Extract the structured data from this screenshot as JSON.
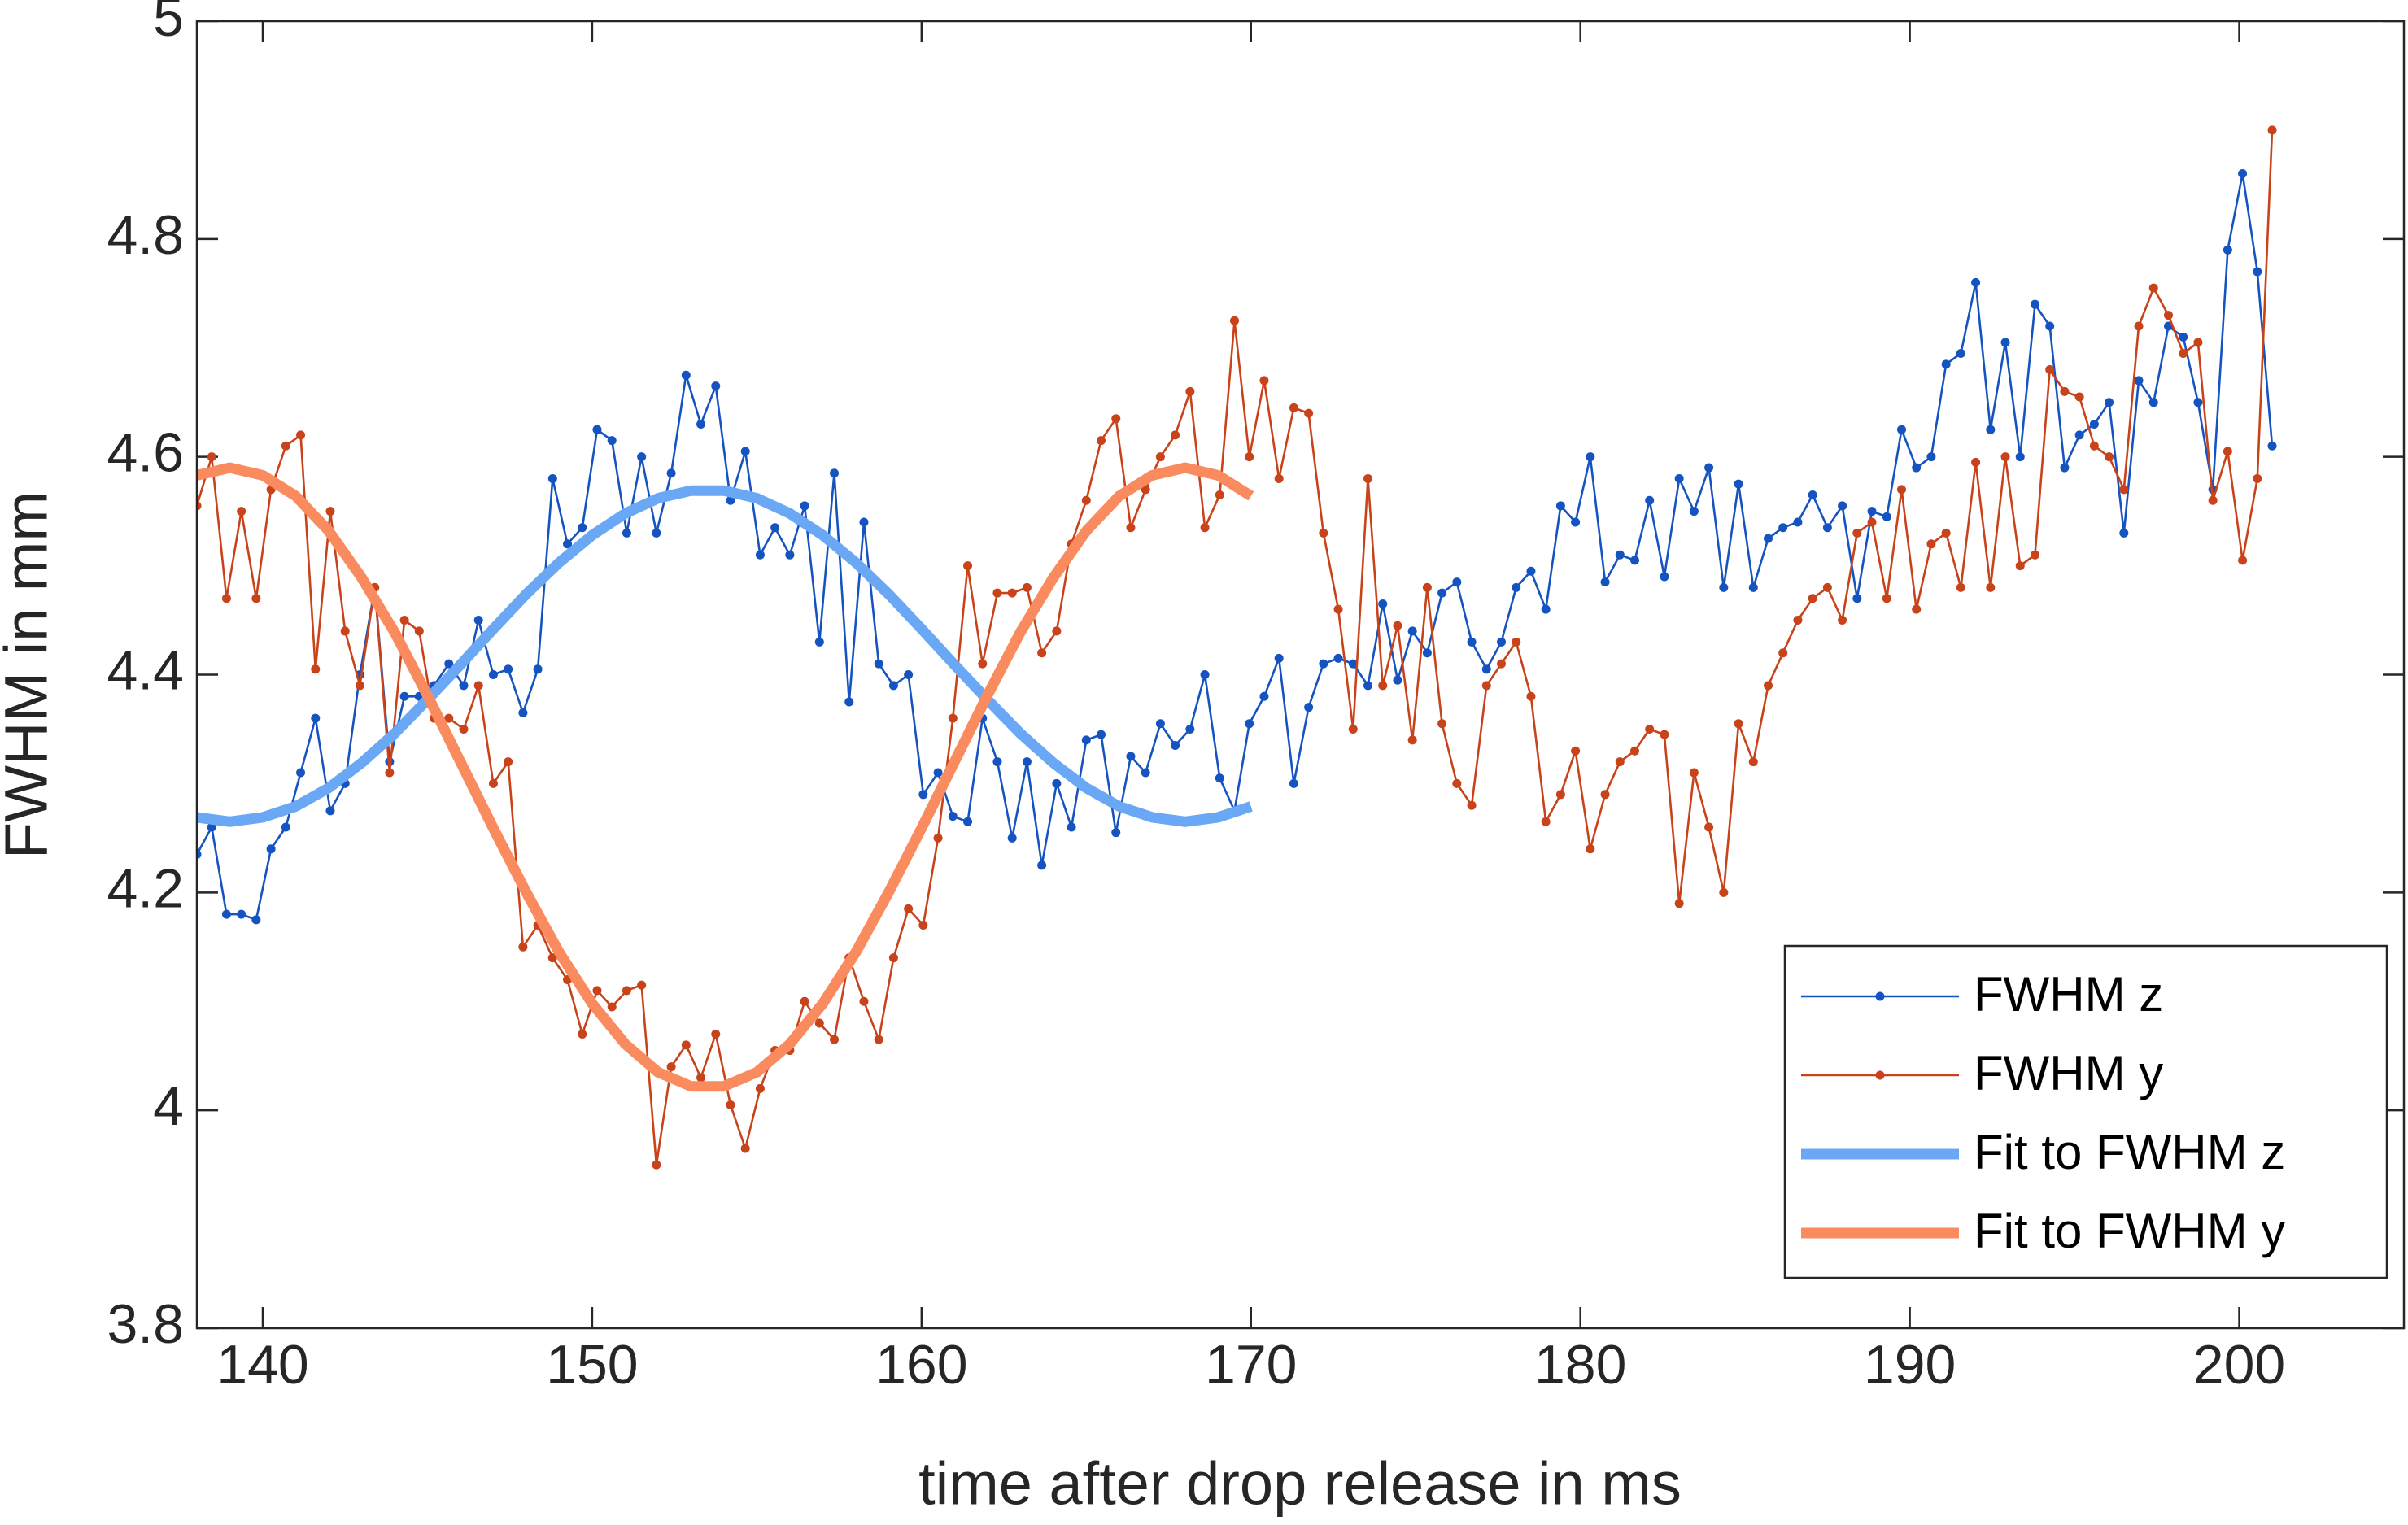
{
  "chart_data": {
    "type": "line",
    "xlabel": "time after drop release in ms",
    "ylabel": "FWHM in mm",
    "xlim": [
      138,
      205
    ],
    "ylim": [
      3.8,
      5
    ],
    "xticks": [
      140,
      150,
      160,
      170,
      180,
      190,
      200
    ],
    "yticks": [
      3.8,
      4,
      4.2,
      4.4,
      4.6,
      4.8,
      5
    ],
    "grid": false,
    "legend": "lower right",
    "series": [
      {
        "name": "FWHM z",
        "color": "#1554c0",
        "style": "marker-line",
        "x": [
          138,
          138.45,
          138.9,
          139.35,
          139.8,
          140.25,
          140.7,
          141.15,
          141.6,
          142.05,
          142.5,
          142.95,
          143.4,
          143.85,
          144.3,
          144.75,
          145.2,
          145.65,
          146.1,
          146.55,
          147,
          147.45,
          147.9,
          148.35,
          148.8,
          149.25,
          149.7,
          150.15,
          150.6,
          151.05,
          151.5,
          151.95,
          152.4,
          152.85,
          153.3,
          153.75,
          154.2,
          154.65,
          155.1,
          155.55,
          156,
          156.45,
          156.9,
          157.35,
          157.8,
          158.25,
          158.7,
          159.15,
          159.6,
          160.05,
          160.5,
          160.95,
          161.4,
          161.85,
          162.3,
          162.75,
          163.2,
          163.65,
          164.1,
          164.55,
          165,
          165.45,
          165.9,
          166.35,
          166.8,
          167.25,
          167.7,
          168.15,
          168.6,
          169.05,
          169.5,
          169.95,
          170.4,
          170.85,
          171.3,
          171.75,
          172.2,
          172.65,
          173.1,
          173.55,
          174,
          174.45,
          174.9,
          175.35,
          175.8,
          176.25,
          176.7,
          177.15,
          177.6,
          178.05,
          178.5,
          178.95,
          179.4,
          179.85,
          180.3,
          180.75,
          181.2,
          181.65,
          182.1,
          182.55,
          183,
          183.45,
          183.9,
          184.35,
          184.8,
          185.25,
          185.7,
          186.15,
          186.6,
          187.05,
          187.5,
          187.95,
          188.4,
          188.85,
          189.3,
          189.75,
          190.2,
          190.65,
          191.1,
          191.55,
          192,
          192.45,
          192.9,
          193.35,
          193.8,
          194.25,
          194.7,
          195.15,
          195.6,
          196.05,
          196.5,
          196.95,
          197.4,
          197.85,
          198.3,
          198.75,
          199.2,
          199.65,
          200.1,
          200.55,
          201
        ],
        "values": [
          4.235,
          4.26,
          4.18,
          4.18,
          4.175,
          4.24,
          4.26,
          4.31,
          4.36,
          4.275,
          4.3,
          4.4,
          4.48,
          4.32,
          4.38,
          4.38,
          4.39,
          4.41,
          4.39,
          4.45,
          4.4,
          4.405,
          4.365,
          4.405,
          4.58,
          4.52,
          4.535,
          4.625,
          4.615,
          4.53,
          4.6,
          4.53,
          4.585,
          4.675,
          4.63,
          4.665,
          4.56,
          4.605,
          4.51,
          4.535,
          4.51,
          4.555,
          4.43,
          4.585,
          4.375,
          4.54,
          4.41,
          4.39,
          4.4,
          4.29,
          4.31,
          4.27,
          4.265,
          4.36,
          4.32,
          4.25,
          4.32,
          4.225,
          4.3,
          4.26,
          4.34,
          4.345,
          4.255,
          4.325,
          4.31,
          4.355,
          4.335,
          4.35,
          4.4,
          4.305,
          4.275,
          4.355,
          4.38,
          4.415,
          4.3,
          4.37,
          4.41,
          4.415,
          4.41,
          4.39,
          4.465,
          4.395,
          4.44,
          4.42,
          4.475,
          4.485,
          4.43,
          4.405,
          4.43,
          4.48,
          4.495,
          4.46,
          4.555,
          4.54,
          4.6,
          4.485,
          4.51,
          4.505,
          4.56,
          4.49,
          4.58,
          4.55,
          4.59,
          4.48,
          4.575,
          4.48,
          4.525,
          4.535,
          4.54,
          4.565,
          4.535,
          4.555,
          4.47,
          4.55,
          4.545,
          4.625,
          4.59,
          4.6,
          4.685,
          4.695,
          4.76,
          4.625,
          4.705,
          4.6,
          4.74,
          4.72,
          4.59,
          4.62,
          4.63,
          4.65,
          4.53,
          4.67,
          4.65,
          4.72,
          4.71,
          4.65,
          4.57,
          4.79,
          4.86,
          4.77,
          4.61
        ]
      },
      {
        "name": "FWHM y",
        "color": "#c8421a",
        "style": "marker-line",
        "x": [
          138,
          138.45,
          138.9,
          139.35,
          139.8,
          140.25,
          140.7,
          141.15,
          141.6,
          142.05,
          142.5,
          142.95,
          143.4,
          143.85,
          144.3,
          144.75,
          145.2,
          145.65,
          146.1,
          146.55,
          147,
          147.45,
          147.9,
          148.35,
          148.8,
          149.25,
          149.7,
          150.15,
          150.6,
          151.05,
          151.5,
          151.95,
          152.4,
          152.85,
          153.3,
          153.75,
          154.2,
          154.65,
          155.1,
          155.55,
          156,
          156.45,
          156.9,
          157.35,
          157.8,
          158.25,
          158.7,
          159.15,
          159.6,
          160.05,
          160.5,
          160.95,
          161.4,
          161.85,
          162.3,
          162.75,
          163.2,
          163.65,
          164.1,
          164.55,
          165,
          165.45,
          165.9,
          166.35,
          166.8,
          167.25,
          167.7,
          168.15,
          168.6,
          169.05,
          169.5,
          169.95,
          170.4,
          170.85,
          171.3,
          171.75,
          172.2,
          172.65,
          173.1,
          173.55,
          174,
          174.45,
          174.9,
          175.35,
          175.8,
          176.25,
          176.7,
          177.15,
          177.6,
          178.05,
          178.5,
          178.95,
          179.4,
          179.85,
          180.3,
          180.75,
          181.2,
          181.65,
          182.1,
          182.55,
          183,
          183.45,
          183.9,
          184.35,
          184.8,
          185.25,
          185.7,
          186.15,
          186.6,
          187.05,
          187.5,
          187.95,
          188.4,
          188.85,
          189.3,
          189.75,
          190.2,
          190.65,
          191.1,
          191.55,
          192,
          192.45,
          192.9,
          193.35,
          193.8,
          194.25,
          194.7,
          195.15,
          195.6,
          196.05,
          196.5,
          196.95,
          197.4,
          197.85,
          198.3,
          198.75,
          199.2,
          199.65,
          200.1,
          200.55,
          201
        ],
        "values": [
          4.555,
          4.6,
          4.47,
          4.55,
          4.47,
          4.57,
          4.61,
          4.62,
          4.405,
          4.55,
          4.44,
          4.39,
          4.48,
          4.31,
          4.45,
          4.44,
          4.36,
          4.36,
          4.35,
          4.39,
          4.3,
          4.32,
          4.15,
          4.17,
          4.14,
          4.12,
          4.07,
          4.11,
          4.095,
          4.11,
          4.115,
          3.95,
          4.04,
          4.06,
          4.03,
          4.07,
          4.005,
          3.965,
          4.02,
          4.055,
          4.055,
          4.1,
          4.08,
          4.065,
          4.14,
          4.1,
          4.065,
          4.14,
          4.185,
          4.17,
          4.25,
          4.36,
          4.5,
          4.41,
          4.475,
          4.475,
          4.48,
          4.42,
          4.44,
          4.52,
          4.56,
          4.615,
          4.635,
          4.535,
          4.57,
          4.6,
          4.62,
          4.66,
          4.535,
          4.565,
          4.725,
          4.6,
          4.67,
          4.58,
          4.645,
          4.64,
          4.53,
          4.46,
          4.35,
          4.58,
          4.39,
          4.445,
          4.34,
          4.48,
          4.355,
          4.3,
          4.28,
          4.39,
          4.41,
          4.43,
          4.38,
          4.265,
          4.29,
          4.33,
          4.24,
          4.29,
          4.32,
          4.33,
          4.35,
          4.345,
          4.19,
          4.31,
          4.26,
          4.2,
          4.355,
          4.32,
          4.39,
          4.42,
          4.45,
          4.47,
          4.48,
          4.45,
          4.53,
          4.54,
          4.47,
          4.57,
          4.46,
          4.52,
          4.53,
          4.48,
          4.595,
          4.48,
          4.6,
          4.5,
          4.51,
          4.68,
          4.66,
          4.655,
          4.61,
          4.6,
          4.57,
          4.72,
          4.755,
          4.73,
          4.695,
          4.705,
          4.56,
          4.605,
          4.505,
          4.58,
          4.9
        ]
      },
      {
        "name": "Fit to FWHM z",
        "color": "#6aa8f5",
        "style": "thick-line",
        "x": [
          138,
          139,
          140,
          141,
          142,
          143,
          144,
          145,
          146,
          147,
          148,
          149,
          150,
          151,
          152,
          153,
          154,
          155,
          156,
          157,
          158,
          159,
          160,
          161,
          162,
          163,
          164,
          165,
          166,
          167,
          168,
          169,
          170
        ],
        "values": [
          4.269,
          4.265,
          4.269,
          4.279,
          4.296,
          4.319,
          4.346,
          4.377,
          4.409,
          4.442,
          4.474,
          4.503,
          4.528,
          4.548,
          4.562,
          4.569,
          4.569,
          4.562,
          4.548,
          4.528,
          4.503,
          4.474,
          4.442,
          4.409,
          4.377,
          4.346,
          4.319,
          4.296,
          4.279,
          4.269,
          4.265,
          4.269,
          4.279
        ]
      },
      {
        "name": "Fit to FWHM y",
        "color": "#f98b5e",
        "style": "thick-line",
        "x": [
          138,
          139,
          140,
          141,
          142,
          143,
          144,
          145,
          146,
          147,
          148,
          149,
          150,
          151,
          152,
          153,
          154,
          155,
          156,
          157,
          158,
          159,
          160,
          161,
          162,
          163,
          164,
          165,
          166,
          167,
          168,
          169,
          170
        ],
        "values": [
          4.583,
          4.59,
          4.583,
          4.564,
          4.532,
          4.489,
          4.439,
          4.381,
          4.32,
          4.259,
          4.2,
          4.145,
          4.098,
          4.061,
          4.035,
          4.022,
          4.022,
          4.035,
          4.061,
          4.098,
          4.145,
          4.2,
          4.259,
          4.32,
          4.381,
          4.439,
          4.489,
          4.532,
          4.564,
          4.583,
          4.59,
          4.583,
          4.564
        ]
      }
    ]
  }
}
